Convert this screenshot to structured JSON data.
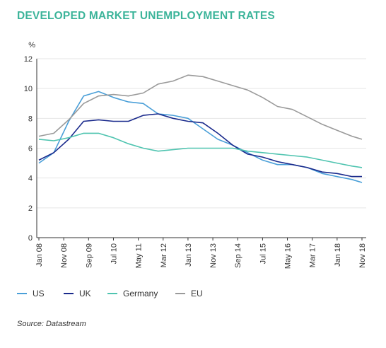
{
  "page": {
    "title": "DEVELOPED MARKET UNEMPLOYMENT RATES",
    "source": "Source: Datastream"
  },
  "colors": {
    "title": "#3cb49a",
    "US": "#4a9fd8",
    "UK": "#1a2a8c",
    "Germany": "#4fc4b0",
    "EU": "#9a9a9a",
    "grid": "#e6e6e6",
    "axis": "#333333"
  },
  "chart_data": {
    "type": "line",
    "title": "DEVELOPED MARKET UNEMPLOYMENT RATES",
    "ylabel": "%",
    "xlabel": "",
    "ylim": [
      0,
      12
    ],
    "yticks": [
      0,
      2,
      4,
      6,
      8,
      10,
      12
    ],
    "x_range": [
      "Jan 08",
      "Nov 18"
    ],
    "xtick_labels": [
      "Jan 08",
      "Nov 08",
      "Sep 09",
      "Jul 10",
      "May 11",
      "Mar 12",
      "Jan 13",
      "Nov 13",
      "Sep 14",
      "Jul 15",
      "May 16",
      "Mar 17",
      "Jan 18",
      "Nov 18"
    ],
    "grid": true,
    "legend_position": "bottom",
    "x": [
      "Jan 08",
      "Jul 08",
      "Jan 09",
      "Jul 09",
      "Jan 10",
      "Jul 10",
      "Jan 11",
      "Jul 11",
      "Jan 12",
      "Jul 12",
      "Jan 13",
      "Jul 13",
      "Jan 14",
      "Jul 14",
      "Jan 15",
      "Jul 15",
      "Jan 16",
      "Jul 16",
      "Jan 17",
      "Jul 17",
      "Jan 18",
      "Jul 18",
      "Nov 18"
    ],
    "series": [
      {
        "name": "US",
        "values": [
          5.0,
          5.7,
          7.8,
          9.5,
          9.8,
          9.4,
          9.1,
          9.0,
          8.3,
          8.2,
          8.0,
          7.3,
          6.6,
          6.2,
          5.7,
          5.2,
          4.9,
          4.9,
          4.7,
          4.3,
          4.1,
          3.9,
          3.7
        ]
      },
      {
        "name": "UK",
        "values": [
          5.2,
          5.7,
          6.6,
          7.8,
          7.9,
          7.8,
          7.8,
          8.2,
          8.3,
          8.0,
          7.8,
          7.7,
          7.0,
          6.2,
          5.6,
          5.4,
          5.1,
          4.9,
          4.7,
          4.4,
          4.3,
          4.1,
          4.1
        ]
      },
      {
        "name": "Germany",
        "values": [
          6.6,
          6.5,
          6.7,
          7.0,
          7.0,
          6.7,
          6.3,
          6.0,
          5.8,
          5.9,
          6.0,
          6.0,
          6.0,
          6.0,
          5.8,
          5.7,
          5.6,
          5.5,
          5.4,
          5.2,
          5.0,
          4.8,
          4.7
        ]
      },
      {
        "name": "EU",
        "values": [
          6.8,
          7.0,
          7.9,
          9.0,
          9.5,
          9.6,
          9.5,
          9.7,
          10.3,
          10.5,
          10.9,
          10.8,
          10.5,
          10.2,
          9.9,
          9.4,
          8.8,
          8.6,
          8.1,
          7.6,
          7.2,
          6.8,
          6.6
        ]
      }
    ]
  }
}
